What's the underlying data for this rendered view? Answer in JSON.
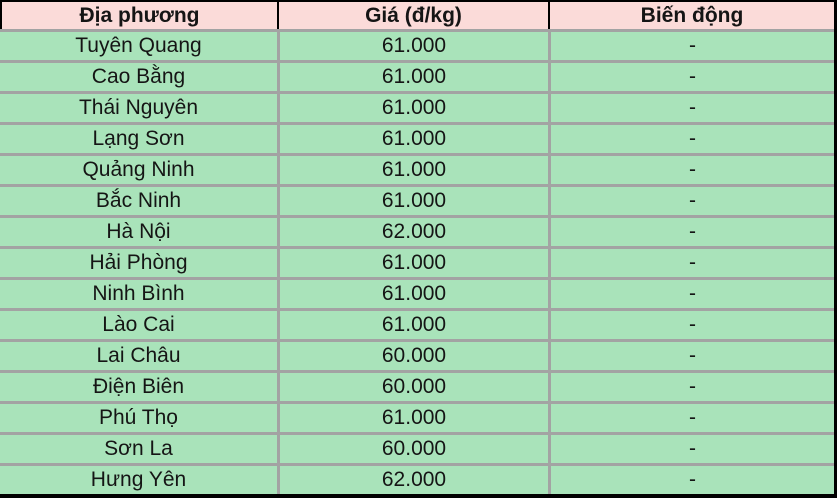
{
  "chart_data": {
    "type": "table",
    "title": "",
    "columns": [
      "Địa phương",
      "Giá (đ/kg)",
      "Biến động"
    ],
    "rows": [
      [
        "Tuyên Quang",
        "61.000",
        "-"
      ],
      [
        "Cao Bằng",
        "61.000",
        "-"
      ],
      [
        "Thái Nguyên",
        "61.000",
        "-"
      ],
      [
        "Lạng Sơn",
        "61.000",
        "-"
      ],
      [
        "Quảng Ninh",
        "61.000",
        "-"
      ],
      [
        "Bắc Ninh",
        "61.000",
        "-"
      ],
      [
        "Hà Nội",
        "62.000",
        "-"
      ],
      [
        "Hải Phòng",
        "61.000",
        "-"
      ],
      [
        "Ninh Bình",
        "61.000",
        "-"
      ],
      [
        "Lào Cai",
        "61.000",
        "-"
      ],
      [
        "Lai Châu",
        "60.000",
        "-"
      ],
      [
        "Điện Biên",
        "60.000",
        "-"
      ],
      [
        "Phú Thọ",
        "61.000",
        "-"
      ],
      [
        "Sơn La",
        "60.000",
        "-"
      ],
      [
        "Hưng Yên",
        "62.000",
        "-"
      ]
    ]
  },
  "colors": {
    "header_bg": "#fbdbd9",
    "row_bg": "#a9e3ba",
    "grid": "#a3a3a3",
    "border": "#000000",
    "text": "#151515"
  }
}
